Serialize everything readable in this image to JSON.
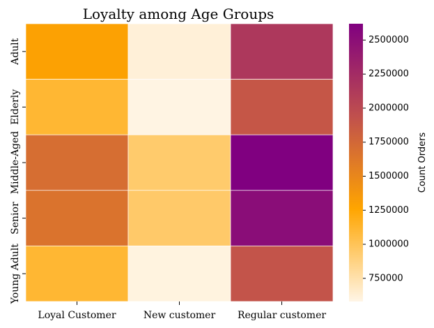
{
  "chart_data": {
    "type": "heatmap",
    "title": "Loyalty among Age Groups",
    "x_categories": [
      "Loyal Customer",
      "New customer",
      "Regular customer"
    ],
    "y_categories": [
      "Adult",
      "Elderly",
      "Middle-Aged",
      "Senior",
      "Young Adult"
    ],
    "values": [
      [
        1290000,
        620000,
        2140000
      ],
      [
        1110000,
        590000,
        1890000
      ],
      [
        1700000,
        940000,
        2620000
      ],
      [
        1660000,
        950000,
        2510000
      ],
      [
        1110000,
        600000,
        1910000
      ]
    ],
    "colorbar": {
      "label": "Count Orders",
      "min": 580000,
      "max": 2620000,
      "ticks": [
        750000,
        1000000,
        1250000,
        1500000,
        1750000,
        2000000,
        2250000,
        2500000
      ],
      "tick_labels": [
        "750000",
        "1000000",
        "1250000",
        "1500000",
        "1750000",
        "2000000",
        "2250000",
        "2500000"
      ],
      "colors": [
        "#fff5e6",
        "#ffa500",
        "#c0504d",
        "#800080"
      ]
    },
    "grid": false,
    "legend": "colorbar-right"
  }
}
